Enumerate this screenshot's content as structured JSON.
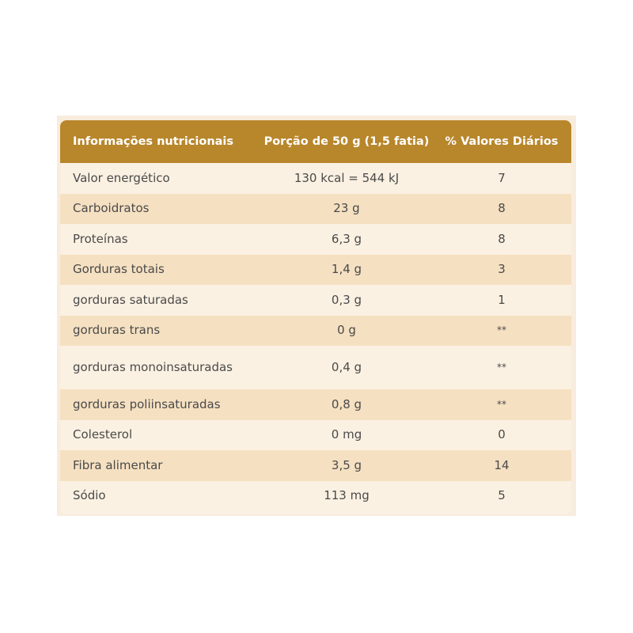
{
  "header": {
    "col1": "Informações nutricionais",
    "col2": "Porção de 50 g (1,5 fatia)",
    "col3": "% Valores Diários"
  },
  "rows": [
    {
      "nutrient": "Valor energético",
      "portion": "130 kcal = 544 kJ",
      "dv": "7"
    },
    {
      "nutrient": "Carboidratos",
      "portion": "23 g",
      "dv": "8"
    },
    {
      "nutrient": "Proteínas",
      "portion": "6,3 g",
      "dv": "8"
    },
    {
      "nutrient": "Gorduras totais",
      "portion": "1,4 g",
      "dv": "3"
    },
    {
      "nutrient": "gorduras saturadas",
      "portion": "0,3 g",
      "dv": "1"
    },
    {
      "nutrient": "gorduras trans",
      "portion": "0 g",
      "dv": "**"
    },
    {
      "nutrient": "gorduras monoinsaturadas",
      "portion": "0,4 g",
      "dv": "**"
    },
    {
      "nutrient": "gorduras poliinsaturadas",
      "portion": "0,8 g",
      "dv": "**"
    },
    {
      "nutrient": "Colesterol",
      "portion": "0 mg",
      "dv": "0"
    },
    {
      "nutrient": "Fibra alimentar",
      "portion": "3,5 g",
      "dv": "14"
    },
    {
      "nutrient": "Sódio",
      "portion": "113 mg",
      "dv": "5"
    }
  ],
  "colors": {
    "header_bg": "#b8862b",
    "row_light": "#fbf1e2",
    "row_dark": "#f5e0c1"
  }
}
